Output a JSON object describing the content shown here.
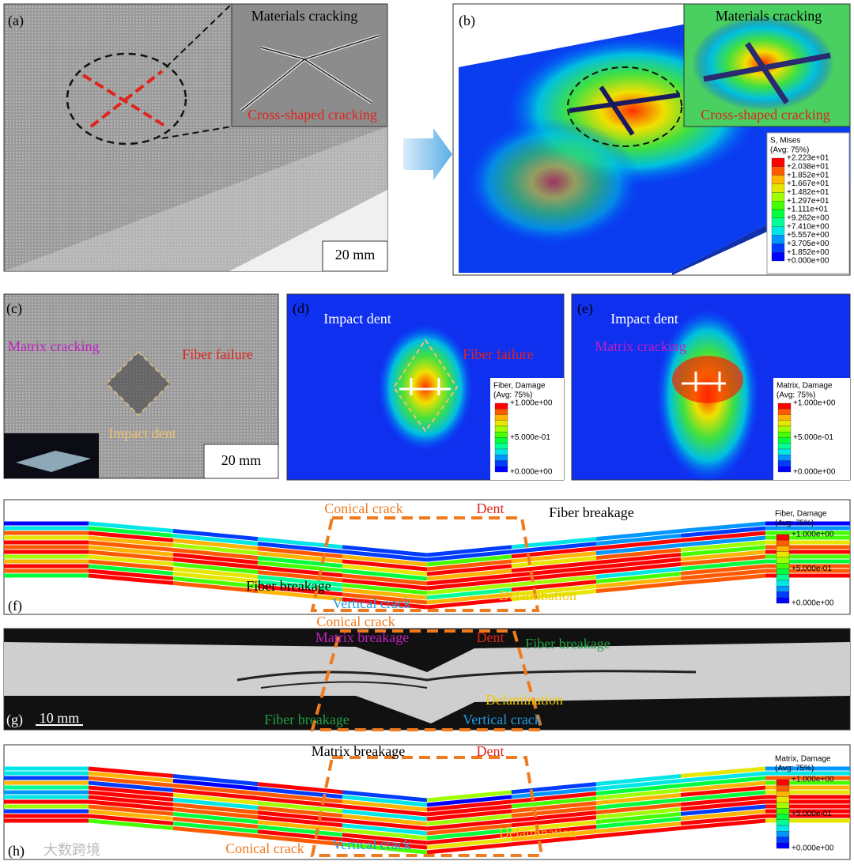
{
  "panels": [
    {
      "label": "(a)",
      "annotations": [
        {
          "text": "Materials cracking",
          "color": "#000000"
        },
        {
          "text": "Cross-shaped cracking",
          "color": "#e0231c"
        }
      ],
      "scale_bar": "20 mm"
    },
    {
      "label": "(b)",
      "annotations": [
        {
          "text": "Materials cracking",
          "color": "#000000"
        },
        {
          "text": "Cross-shaped cracking",
          "color": "#e0231c"
        }
      ],
      "legend": {
        "title": "S, Mises",
        "subtitle": "(Avg: 75%)",
        "labels": [
          "+2.223e+01",
          "+2.038e+01",
          "+1.852e+01",
          "+1.667e+01",
          "+1.482e+01",
          "+1.297e+01",
          "+1.111e+01",
          "+9.262e+00",
          "+7.410e+00",
          "+5.557e+00",
          "+3.705e+00",
          "+1.852e+00",
          "+0.000e+00"
        ]
      }
    },
    {
      "label": "(c)",
      "annotations": [
        {
          "text": "Matrix cracking",
          "color": "#c020c0"
        },
        {
          "text": "Fiber failure",
          "color": "#e0231c"
        },
        {
          "text": "Impact dent",
          "color": "#f0c070"
        }
      ],
      "scale_bar": "20 mm"
    },
    {
      "label": "(d)",
      "annotations": [
        {
          "text": "Impact dent",
          "color": "#ffffff"
        },
        {
          "text": "Fiber failure",
          "color": "#e0231c"
        }
      ],
      "legend": {
        "title": "Fiber, Damage",
        "subtitle": "(Avg: 75%)",
        "labels": [
          "+1.000e+00",
          "+5.000e-01",
          "+0.000e+00"
        ]
      }
    },
    {
      "label": "(e)",
      "annotations": [
        {
          "text": "Impact dent",
          "color": "#ffffff"
        },
        {
          "text": "Matrix cracking",
          "color": "#c020c0"
        }
      ],
      "legend": {
        "title": "Matrix, Damage",
        "subtitle": "(Avg: 75%)",
        "labels": [
          "+1.000e+00",
          "+5.000e-01",
          "+0.000e+00"
        ]
      }
    },
    {
      "label": "(f)",
      "annotations": [
        {
          "text": "Conical crack",
          "color": "#f07a1e"
        },
        {
          "text": "Dent",
          "color": "#e0231c"
        },
        {
          "text": "Fiber breakage",
          "color": "#000000"
        },
        {
          "text": "Fiber breakage",
          "color": "#000000"
        },
        {
          "text": "Vertical crack",
          "color": "#1e9be6"
        },
        {
          "text": "Delamination",
          "color": "#f0c800"
        }
      ],
      "legend": {
        "title": "Fiber, Damage",
        "subtitle": "(Avg: 75%)",
        "labels": [
          "+1.000e+00",
          "+5.000e-01",
          "+0.000e+00"
        ]
      }
    },
    {
      "label": "(g)",
      "annotations": [
        {
          "text": "Conical crack",
          "color": "#f07a1e"
        },
        {
          "text": "Matrix breakage",
          "color": "#c020c0"
        },
        {
          "text": "Dent",
          "color": "#e0231c"
        },
        {
          "text": "Fiber breakage",
          "color": "#1fa040"
        },
        {
          "text": "Delamination",
          "color": "#f0c800"
        },
        {
          "text": "Fiber breakage",
          "color": "#1fa040"
        },
        {
          "text": "Vertical crack",
          "color": "#1e9be6"
        }
      ],
      "scale_bar": "10 mm"
    },
    {
      "label": "(h)",
      "annotations": [
        {
          "text": "Matrix breakage",
          "color": "#000000"
        },
        {
          "text": "Dent",
          "color": "#e0231c"
        },
        {
          "text": "Delamination",
          "color": "#f0c800"
        },
        {
          "text": "Conical crack",
          "color": "#f07a1e"
        },
        {
          "text": "Vertical crack",
          "color": "#1e9be6"
        }
      ],
      "legend": {
        "title": "Matrix, Damage",
        "subtitle": "(Avg: 75%)",
        "labels": [
          "+1.000e+00",
          "+5.000e-01",
          "+0.000e+00"
        ]
      }
    }
  ],
  "watermark": "大数跨境"
}
